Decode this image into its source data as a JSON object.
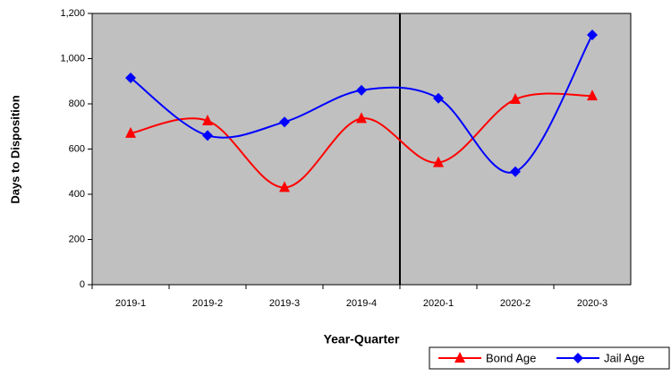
{
  "chart_data": {
    "type": "line",
    "x_label": "Year-Quarter",
    "y_label": "Days to Disposition",
    "categories": [
      "2019-1",
      "2019-2",
      "2019-3",
      "2019-4",
      "2020-1",
      "2020-2",
      "2020-3"
    ],
    "series": [
      {
        "name": "Bond Age",
        "color": "#ff0000",
        "marker": "triangle",
        "values": [
          670,
          725,
          430,
          735,
          540,
          820,
          835
        ]
      },
      {
        "name": "Jail Age",
        "color": "#0000ff",
        "marker": "diamond",
        "values": [
          915,
          660,
          720,
          860,
          825,
          500,
          1105
        ]
      }
    ],
    "ylim": [
      0,
      1200
    ],
    "yticks": [
      0,
      200,
      400,
      600,
      800,
      {
        "value": 1000,
        "label": "1,000"
      },
      {
        "value": 1200,
        "label": "1,200"
      }
    ],
    "smooth": true,
    "plot_background": "#c0c0c0",
    "legend": "bottom-right"
  }
}
